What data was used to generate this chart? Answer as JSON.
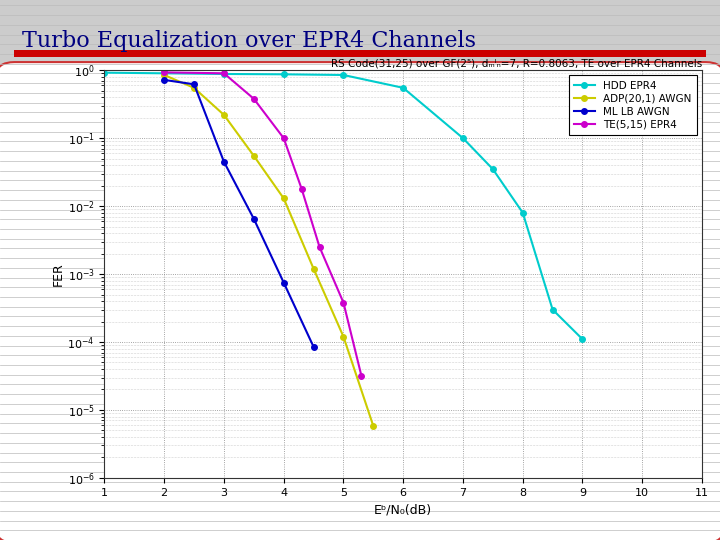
{
  "title": "Turbo Equalization over EPR4 Channels",
  "plot_title": "RS Code(31,25) over GF(2⁵), dₘᴵₙ=7, R=0.8063, TE over EPR4 Channels",
  "xlabel": "Eᵇ/N₀(dB)",
  "ylabel": "FER",
  "xlim": [
    1,
    11
  ],
  "ylim_exp": [
    -6,
    0
  ],
  "series": [
    {
      "label": "HDD EPR4",
      "color": "#00CCCC",
      "marker": "o",
      "markersize": 4,
      "linewidth": 1.5,
      "x": [
        1,
        2,
        3,
        4,
        5,
        6,
        7,
        7.5,
        8,
        8.5,
        9
      ],
      "y": [
        0.92,
        0.9,
        0.88,
        0.87,
        0.85,
        0.55,
        0.1,
        0.035,
        0.008,
        0.0003,
        0.00011
      ]
    },
    {
      "label": "ADP(20,1) AWGN",
      "color": "#CCCC00",
      "marker": "o",
      "markersize": 4,
      "linewidth": 1.5,
      "x": [
        2,
        2.5,
        3,
        3.5,
        4,
        4.5,
        5,
        5.5
      ],
      "y": [
        0.85,
        0.55,
        0.22,
        0.055,
        0.013,
        0.0012,
        0.00012,
        5.8e-06
      ]
    },
    {
      "label": "ML LB AWGN",
      "color": "#0000CC",
      "marker": "o",
      "markersize": 4,
      "linewidth": 1.5,
      "x": [
        2,
        2.5,
        3,
        3.5,
        4,
        4.5
      ],
      "y": [
        0.72,
        0.62,
        0.045,
        0.0065,
        0.00075,
        8.5e-05
      ]
    },
    {
      "label": "TE(5,15) EPR4",
      "color": "#CC00CC",
      "marker": "o",
      "markersize": 4,
      "linewidth": 1.5,
      "x": [
        2,
        3,
        3.5,
        4,
        4.3,
        4.6,
        5,
        5.3
      ],
      "y": [
        0.93,
        0.9,
        0.38,
        0.1,
        0.018,
        0.0025,
        0.00038,
        3.2e-05
      ]
    }
  ],
  "bg_color": "#cccccc",
  "panel_color": "#ffffff",
  "panel_border_color": "#cc3333",
  "title_color": "#000080",
  "title_fontsize": 16,
  "plot_title_fontsize": 7.5,
  "red_bar_color": "#cc0000",
  "grid_color": "#aaaaaa",
  "legend_fontsize": 7.5
}
